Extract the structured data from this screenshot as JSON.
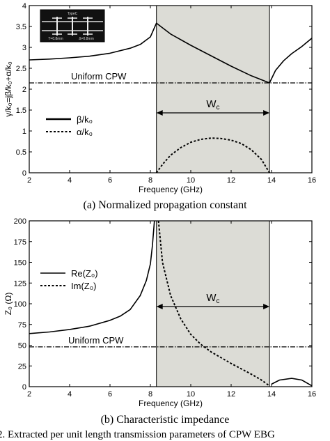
{
  "chart_data": [
    {
      "type": "line",
      "panel": "a",
      "caption": "(a) Normalized propagation constant",
      "xlabel": "Frequency (GHz)",
      "ylabel": "γ/k₀=jβ/k₀+α/k₀",
      "xlim": [
        2,
        16
      ],
      "ylim": [
        0,
        4
      ],
      "xticks": [
        2,
        4,
        6,
        8,
        10,
        12,
        14,
        16
      ],
      "yticks": [
        0,
        0.5,
        1,
        1.5,
        2,
        2.5,
        3,
        3.5,
        4
      ],
      "shaded_band": {
        "x": [
          8.3,
          13.9
        ],
        "label": "Wₑ"
      },
      "reference_line": {
        "y": 2.15,
        "label": "Uniform CPW"
      },
      "inset_labels": [
        "TypeC",
        "T=0.8mm",
        "Δ=0.8mm"
      ],
      "series": [
        {
          "name": "β/k₀",
          "style": "solid",
          "x": [
            2,
            3,
            4,
            5,
            6,
            7,
            7.5,
            8,
            8.3,
            9,
            10,
            11,
            12,
            13,
            13.9
          ],
          "y": [
            2.7,
            2.72,
            2.75,
            2.79,
            2.86,
            2.98,
            3.07,
            3.25,
            3.58,
            3.32,
            3.05,
            2.8,
            2.55,
            2.32,
            2.15
          ]
        },
        {
          "name": "β/k₀ (upper band)",
          "style": "solid",
          "x": [
            13.9,
            14.2,
            14.6,
            15,
            15.5,
            16
          ],
          "y": [
            2.15,
            2.45,
            2.68,
            2.85,
            3.02,
            3.22
          ]
        },
        {
          "name": "α/k₀",
          "style": "dotted",
          "x": [
            8.3,
            8.6,
            9,
            9.5,
            10,
            10.5,
            11,
            11.5,
            12,
            12.5,
            13,
            13.5,
            13.9
          ],
          "y": [
            0,
            0.2,
            0.42,
            0.6,
            0.73,
            0.8,
            0.83,
            0.82,
            0.78,
            0.7,
            0.55,
            0.32,
            0
          ]
        }
      ]
    },
    {
      "type": "line",
      "panel": "b",
      "caption": "(b) Characteristic impedance",
      "xlabel": "Frequency (GHz)",
      "ylabel": "Z₀ (Ω)",
      "xlim": [
        2,
        16
      ],
      "ylim": [
        0,
        200
      ],
      "xticks": [
        2,
        4,
        6,
        8,
        10,
        12,
        14,
        16
      ],
      "yticks": [
        0,
        25,
        50,
        75,
        100,
        125,
        150,
        175,
        200
      ],
      "shaded_band": {
        "x": [
          8.3,
          13.9
        ],
        "label": "Wₑ"
      },
      "reference_line": {
        "y": 48,
        "label": "Uniform CPW"
      },
      "series": [
        {
          "name": "Re(Z₀)",
          "style": "solid",
          "x": [
            2,
            3,
            4,
            5,
            6,
            6.5,
            7,
            7.5,
            7.8,
            8,
            8.1,
            8.2
          ],
          "y": [
            64,
            66,
            69,
            73,
            80,
            85,
            93,
            110,
            128,
            148,
            170,
            200
          ]
        },
        {
          "name": "Re(Z₀) (upper band)",
          "style": "solid",
          "x": [
            14,
            14.4,
            15,
            15.5,
            16
          ],
          "y": [
            3,
            8,
            10,
            8,
            1
          ]
        },
        {
          "name": "Im(Z₀)",
          "style": "dotted",
          "x": [
            8.4,
            8.6,
            9,
            9.5,
            10,
            10.5,
            11,
            12,
            13,
            13.5,
            13.9
          ],
          "y": [
            200,
            150,
            110,
            82,
            63,
            51,
            42,
            28,
            15,
            8,
            1
          ]
        }
      ]
    }
  ],
  "figure_caption": "2. Extracted per unit length transmission parameters of CPW EBG"
}
